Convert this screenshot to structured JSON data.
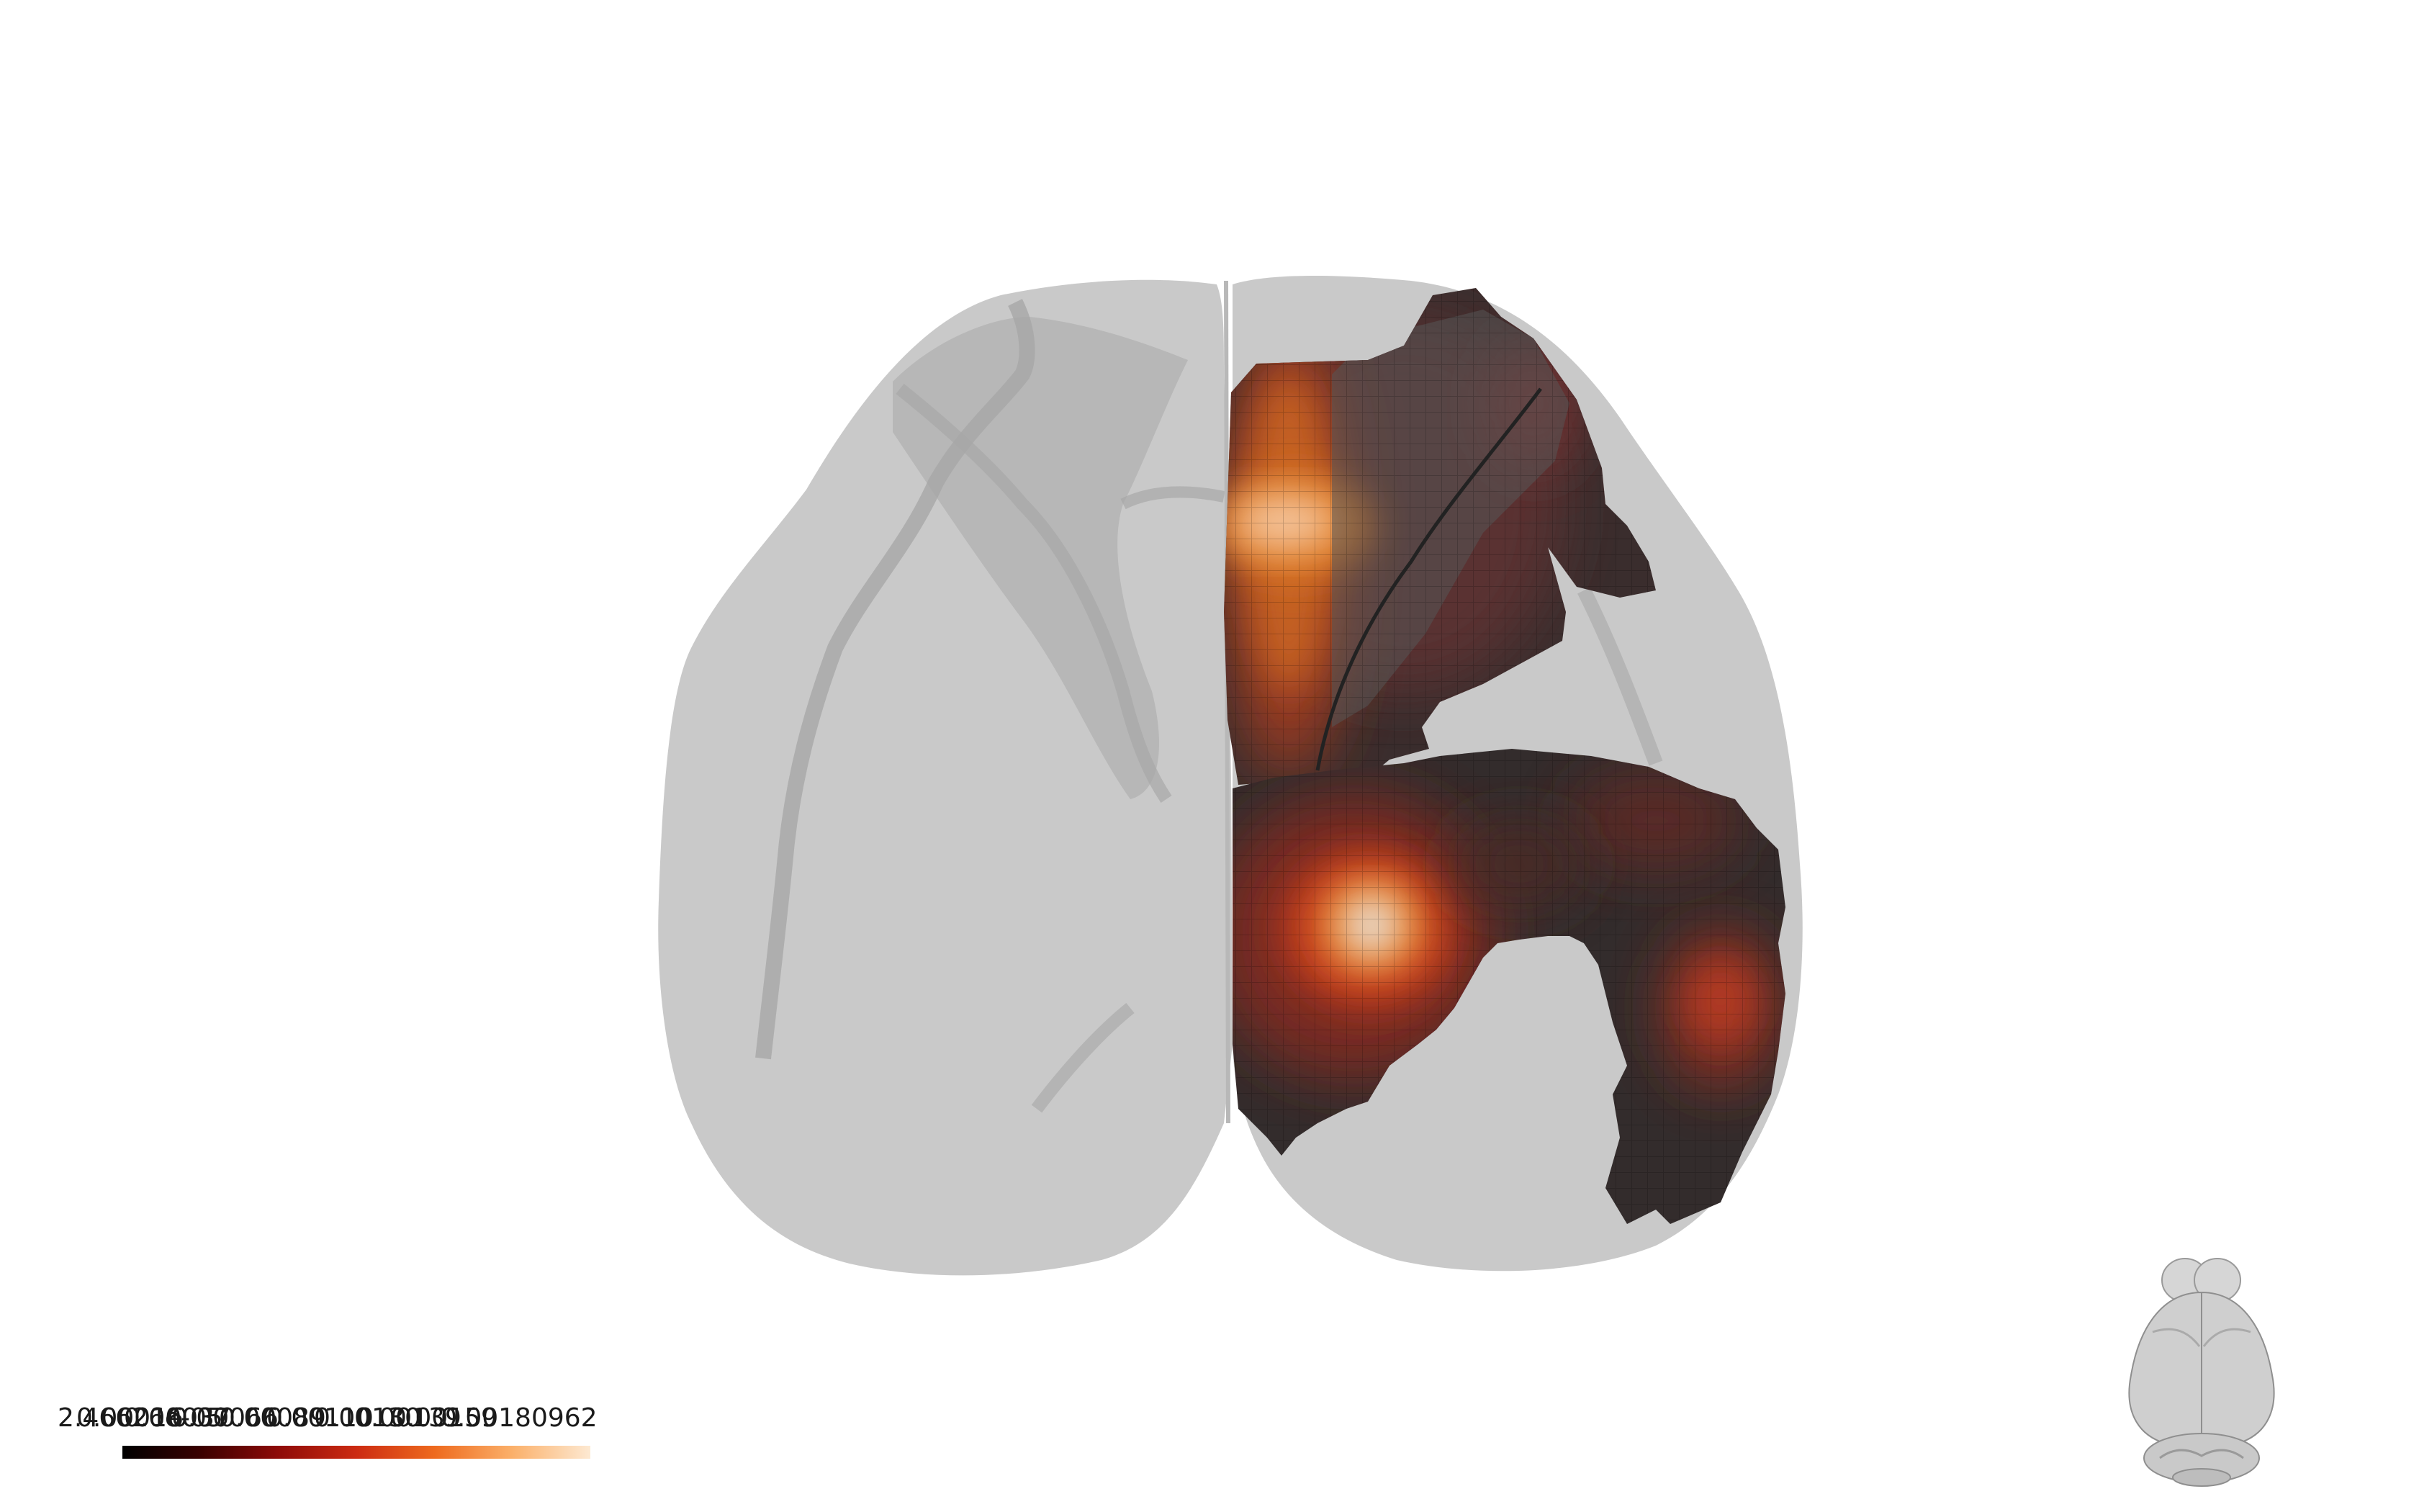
{
  "scene": {
    "background": "#ffffff",
    "shell_color": "#c6c6c6",
    "shell_fold_color": "#a8a8a8",
    "overlay_color": "#2e2b2b",
    "colormap": "hot"
  },
  "colorbar": {
    "ticks": [
      "2.46626e-05",
      "0.00016",
      "0.00037",
      "0.00066",
      "0.00089",
      "0.00110",
      "0.00130",
      "0.00139",
      "0.00159",
      "0.00180962"
    ],
    "colors": [
      "#000000",
      "#3a0000",
      "#8e0b08",
      "#cc2b12",
      "#ee6a1e",
      "#fbb06a",
      "#fde9d2"
    ]
  },
  "widgets": {
    "orientation_icon": "brain-orientation-icon"
  }
}
